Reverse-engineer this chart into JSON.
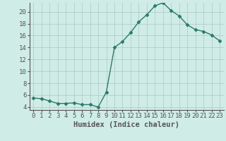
{
  "x": [
    0,
    1,
    2,
    3,
    4,
    5,
    6,
    7,
    8,
    9,
    10,
    11,
    12,
    13,
    14,
    15,
    16,
    17,
    18,
    19,
    20,
    21,
    22,
    23
  ],
  "y": [
    5.5,
    5.4,
    5.0,
    4.6,
    4.6,
    4.7,
    4.4,
    4.4,
    4.0,
    6.5,
    14.0,
    15.0,
    16.5,
    18.3,
    19.5,
    21.0,
    21.5,
    20.2,
    19.3,
    17.8,
    17.0,
    16.7,
    16.1,
    15.1
  ],
  "line_color": "#2a7a6a",
  "marker": "D",
  "markersize": 2.5,
  "linewidth": 1.0,
  "bg_color": "#d0ece6",
  "grid_color": "#b0cfc8",
  "xlabel": "Humidex (Indice chaleur)",
  "xlabel_fontsize": 7.5,
  "tick_fontsize": 6.5,
  "ylim": [
    3.5,
    21.5
  ],
  "xlim": [
    -0.5,
    23.5
  ],
  "yticks": [
    4,
    6,
    8,
    10,
    12,
    14,
    16,
    18,
    20
  ],
  "xtick_labels": [
    "0",
    "1",
    "2",
    "3",
    "4",
    "5",
    "6",
    "7",
    "8",
    "9",
    "10",
    "11",
    "12",
    "13",
    "14",
    "15",
    "16",
    "17",
    "18",
    "19",
    "20",
    "21",
    "22",
    "23"
  ],
  "spine_color": "#555555"
}
